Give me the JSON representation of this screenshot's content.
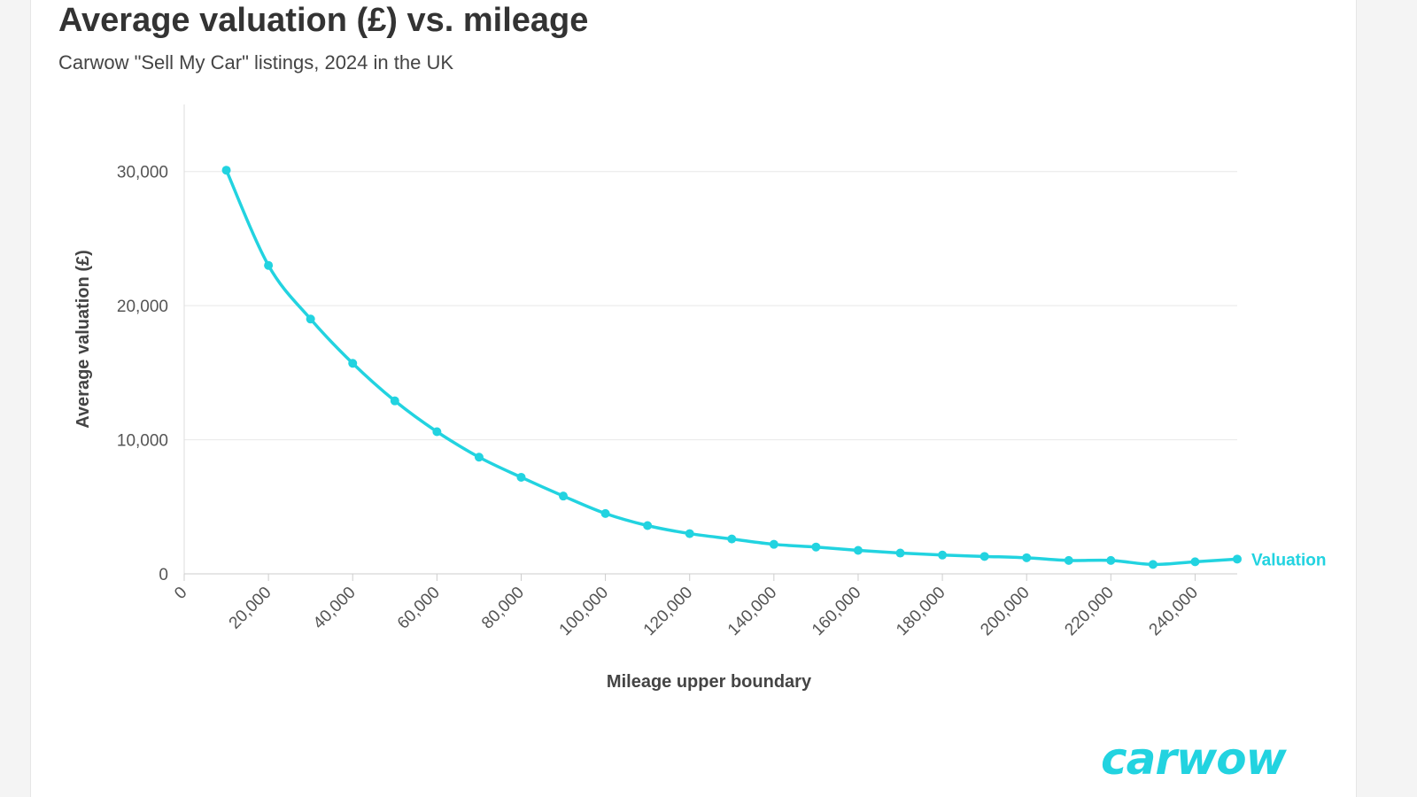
{
  "header": {
    "title": "Average valuation (£) vs. mileage",
    "subtitle": "Carwow \"Sell My Car\" listings, 2024 in the UK"
  },
  "brand": {
    "logo_text": "carwow",
    "color": "#22d3e0"
  },
  "chart_data": {
    "type": "line",
    "title": "Average valuation (£) vs. mileage",
    "subtitle": "Carwow \"Sell My Car\" listings, 2024 in the UK",
    "xlabel": "Mileage upper boundary",
    "ylabel": "Average valuation (£)",
    "xlim": [
      0,
      250000
    ],
    "ylim": [
      0,
      35000
    ],
    "x_ticks": [
      0,
      20000,
      40000,
      60000,
      80000,
      100000,
      120000,
      140000,
      160000,
      180000,
      200000,
      220000,
      240000
    ],
    "x_tick_labels": [
      "0",
      "20,000",
      "40,000",
      "60,000",
      "80,000",
      "100,000",
      "120,000",
      "140,000",
      "160,000",
      "180,000",
      "200,000",
      "220,000",
      "240,000"
    ],
    "y_ticks": [
      0,
      10000,
      20000,
      30000
    ],
    "y_tick_labels": [
      "0",
      "10,000",
      "20,000",
      "30,000"
    ],
    "grid": true,
    "color": "#22d3e0",
    "series": [
      {
        "name": "Valuation",
        "x": [
          10000,
          20000,
          30000,
          40000,
          50000,
          60000,
          70000,
          80000,
          90000,
          100000,
          110000,
          120000,
          130000,
          140000,
          150000,
          160000,
          170000,
          180000,
          190000,
          200000,
          210000,
          220000,
          230000,
          240000,
          250000
        ],
        "values": [
          30100,
          23000,
          19000,
          15700,
          12900,
          10600,
          8700,
          7200,
          5800,
          4500,
          3600,
          3000,
          2600,
          2200,
          2000,
          1750,
          1550,
          1400,
          1300,
          1200,
          1000,
          1000,
          700,
          900,
          1100
        ]
      }
    ]
  }
}
